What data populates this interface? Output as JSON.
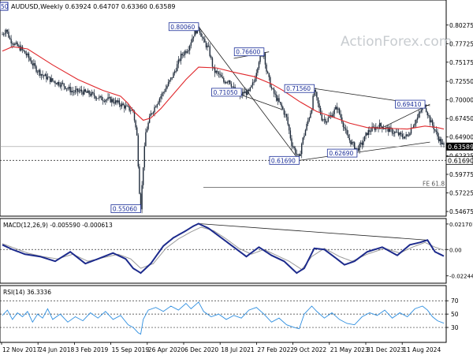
{
  "chart_data": {
    "type": "candlestick",
    "symbol_header": "AUDUSD,Weekly  0.63924 0.64707 0.63360 0.63589",
    "watermark": "ActionForex.com",
    "x_tick_labels": [
      "12 Nov 2017",
      "24 Jun 2018",
      "3 Feb 2019",
      "15 Sep 2019",
      "26 Apr 2020",
      "6 Dec 2020",
      "18 Jul 2021",
      "27 Feb 2022",
      "9 Oct 2022",
      "21 May 2023",
      "31 Dec 2023",
      "11 Aug 2024"
    ],
    "price_axis": {
      "ylim": [
        0.5425,
        0.822
      ],
      "ticks": [
        0.80275,
        0.77725,
        0.75175,
        0.7255,
        0.7,
        0.6745,
        0.649,
        0.62325,
        0.59775,
        0.57225,
        0.54675
      ],
      "tick_labels": [
        "0.80275",
        "0.77725",
        "0.75175",
        "0.72550",
        "0.70000",
        "0.67450",
        "0.64900",
        "0.62325",
        "0.59775",
        "0.57225",
        "0.54675"
      ],
      "current_price_label": "0.63589",
      "current_price": 0.63589,
      "support_label": "0.61690",
      "support": 0.6169
    },
    "price_path": [
      [
        0,
        0.79
      ],
      [
        3,
        0.797
      ],
      [
        6,
        0.783
      ],
      [
        10,
        0.776
      ],
      [
        15,
        0.77
      ],
      [
        20,
        0.76
      ],
      [
        26,
        0.744
      ],
      [
        32,
        0.734
      ],
      [
        40,
        0.726
      ],
      [
        48,
        0.721
      ],
      [
        56,
        0.711
      ],
      [
        62,
        0.712
      ],
      [
        70,
        0.708
      ],
      [
        78,
        0.702
      ],
      [
        86,
        0.7
      ],
      [
        94,
        0.694
      ],
      [
        100,
        0.688
      ],
      [
        104,
        0.685
      ],
      [
        107,
        0.65
      ],
      [
        109,
        0.575
      ],
      [
        110,
        0.553
      ],
      [
        112,
        0.61
      ],
      [
        114,
        0.655
      ],
      [
        118,
        0.68
      ],
      [
        124,
        0.7
      ],
      [
        130,
        0.716
      ],
      [
        136,
        0.735
      ],
      [
        142,
        0.76
      ],
      [
        148,
        0.772
      ],
      [
        152,
        0.79
      ],
      [
        156,
        0.8
      ],
      [
        160,
        0.78
      ],
      [
        164,
        0.77
      ],
      [
        168,
        0.74
      ],
      [
        172,
        0.735
      ],
      [
        176,
        0.725
      ],
      [
        180,
        0.728
      ],
      [
        184,
        0.715
      ],
      [
        188,
        0.705
      ],
      [
        192,
        0.71
      ],
      [
        196,
        0.71
      ],
      [
        200,
        0.725
      ],
      [
        204,
        0.755
      ],
      [
        208,
        0.765
      ],
      [
        210,
        0.74
      ],
      [
        214,
        0.715
      ],
      [
        218,
        0.702
      ],
      [
        222,
        0.69
      ],
      [
        226,
        0.675
      ],
      [
        230,
        0.64
      ],
      [
        234,
        0.625
      ],
      [
        236,
        0.619
      ],
      [
        238,
        0.64
      ],
      [
        242,
        0.665
      ],
      [
        246,
        0.69
      ],
      [
        248,
        0.714
      ],
      [
        250,
        0.7
      ],
      [
        254,
        0.675
      ],
      [
        258,
        0.672
      ],
      [
        262,
        0.68
      ],
      [
        266,
        0.69
      ],
      [
        270,
        0.672
      ],
      [
        274,
        0.65
      ],
      [
        278,
        0.64
      ],
      [
        282,
        0.632
      ],
      [
        286,
        0.64
      ],
      [
        290,
        0.655
      ],
      [
        294,
        0.66
      ],
      [
        300,
        0.665
      ],
      [
        306,
        0.66
      ],
      [
        312,
        0.655
      ],
      [
        318,
        0.65
      ],
      [
        322,
        0.65
      ],
      [
        326,
        0.665
      ],
      [
        330,
        0.675
      ],
      [
        334,
        0.69
      ],
      [
        336,
        0.692
      ],
      [
        340,
        0.672
      ],
      [
        343,
        0.662
      ],
      [
        346,
        0.65
      ],
      [
        349,
        0.641
      ],
      [
        351,
        0.6359
      ]
    ],
    "moving_average": [
      [
        0,
        0.767
      ],
      [
        8,
        0.773
      ],
      [
        20,
        0.77
      ],
      [
        40,
        0.748
      ],
      [
        60,
        0.728
      ],
      [
        80,
        0.713
      ],
      [
        94,
        0.705
      ],
      [
        100,
        0.695
      ],
      [
        104,
        0.685
      ],
      [
        112,
        0.672
      ],
      [
        118,
        0.675
      ],
      [
        126,
        0.688
      ],
      [
        136,
        0.708
      ],
      [
        146,
        0.728
      ],
      [
        156,
        0.745
      ],
      [
        170,
        0.744
      ],
      [
        184,
        0.738
      ],
      [
        200,
        0.732
      ],
      [
        214,
        0.722
      ],
      [
        224,
        0.712
      ],
      [
        236,
        0.698
      ],
      [
        250,
        0.684
      ],
      [
        262,
        0.677
      ],
      [
        276,
        0.668
      ],
      [
        290,
        0.662
      ],
      [
        306,
        0.661
      ],
      [
        322,
        0.66
      ],
      [
        336,
        0.664
      ],
      [
        346,
        0.662
      ],
      [
        351,
        0.66
      ]
    ],
    "annotations": [
      {
        "label": "0.80060",
        "x": 156,
        "y": 0.8006
      },
      {
        "label": "0.76600",
        "x": 208,
        "y": 0.766
      },
      {
        "label": "0.71050",
        "x": 190,
        "y": 0.7105
      },
      {
        "label": "0.71560",
        "x": 248,
        "y": 0.7156
      },
      {
        "label": "0.69410",
        "x": 336,
        "y": 0.6941
      },
      {
        "label": "0.62690",
        "x": 282,
        "y": 0.6269
      },
      {
        "label": "0.61690",
        "x": 236,
        "y": 0.6169
      },
      {
        "label": "0.55060",
        "x": 110,
        "y": 0.5506
      }
    ],
    "partial_top_label": "50",
    "fib_level": {
      "label": "FE 61.8",
      "value": 0.58
    },
    "macd": {
      "title": "MACD(12,26,9) -0.005590 -0.000613",
      "ylim": [
        -0.026,
        0.023
      ],
      "ticks": [
        0.021701,
        0.0,
        -0.022445
      ],
      "tick_labels": [
        "0.021701",
        "0.00",
        "-0.022445"
      ],
      "macd_path": [
        [
          0,
          0.004
        ],
        [
          8,
          0.0
        ],
        [
          18,
          -0.004
        ],
        [
          30,
          -0.006
        ],
        [
          42,
          -0.01
        ],
        [
          54,
          -0.002
        ],
        [
          66,
          -0.012
        ],
        [
          76,
          -0.008
        ],
        [
          88,
          -0.003
        ],
        [
          98,
          -0.008
        ],
        [
          104,
          -0.016
        ],
        [
          110,
          -0.02
        ],
        [
          118,
          -0.012
        ],
        [
          128,
          0.003
        ],
        [
          136,
          0.01
        ],
        [
          146,
          0.016
        ],
        [
          152,
          0.02
        ],
        [
          156,
          0.022
        ],
        [
          164,
          0.018
        ],
        [
          174,
          0.01
        ],
        [
          184,
          0.002
        ],
        [
          194,
          -0.006
        ],
        [
          204,
          0.002
        ],
        [
          214,
          -0.005
        ],
        [
          224,
          -0.01
        ],
        [
          234,
          -0.02
        ],
        [
          240,
          -0.016
        ],
        [
          248,
          0.001
        ],
        [
          256,
          0.0
        ],
        [
          266,
          -0.008
        ],
        [
          272,
          -0.013
        ],
        [
          280,
          -0.01
        ],
        [
          290,
          -0.002
        ],
        [
          302,
          0.002
        ],
        [
          314,
          -0.005
        ],
        [
          324,
          0.004
        ],
        [
          332,
          0.006
        ],
        [
          338,
          0.008
        ],
        [
          344,
          -0.002
        ],
        [
          351,
          -0.0056
        ]
      ],
      "signal_path": [
        [
          0,
          0.005
        ],
        [
          10,
          0.001
        ],
        [
          20,
          -0.003
        ],
        [
          32,
          -0.006
        ],
        [
          44,
          -0.008
        ],
        [
          56,
          -0.004
        ],
        [
          68,
          -0.01
        ],
        [
          80,
          -0.007
        ],
        [
          92,
          -0.004
        ],
        [
          102,
          -0.008
        ],
        [
          110,
          -0.016
        ],
        [
          120,
          -0.012
        ],
        [
          130,
          0.001
        ],
        [
          140,
          0.009
        ],
        [
          150,
          0.015
        ],
        [
          158,
          0.019
        ],
        [
          168,
          0.016
        ],
        [
          178,
          0.009
        ],
        [
          188,
          0.001
        ],
        [
          198,
          -0.004
        ],
        [
          208,
          0.0
        ],
        [
          218,
          -0.005
        ],
        [
          228,
          -0.01
        ],
        [
          238,
          -0.017
        ],
        [
          246,
          -0.006
        ],
        [
          256,
          0.001
        ],
        [
          268,
          -0.006
        ],
        [
          278,
          -0.01
        ],
        [
          290,
          -0.004
        ],
        [
          304,
          0.001
        ],
        [
          316,
          -0.003
        ],
        [
          326,
          0.002
        ],
        [
          336,
          0.006
        ],
        [
          344,
          0.002
        ],
        [
          351,
          -0.0006
        ]
      ]
    },
    "rsi": {
      "title": "RSI(14) 36.3336",
      "ylim": [
        10,
        88
      ],
      "ticks": [
        70,
        50,
        30
      ],
      "tick_labels": [
        "70",
        "50",
        "30"
      ],
      "rsi_path": [
        [
          0,
          48
        ],
        [
          4,
          56
        ],
        [
          8,
          42
        ],
        [
          12,
          52
        ],
        [
          16,
          46
        ],
        [
          20,
          54
        ],
        [
          24,
          38
        ],
        [
          28,
          50
        ],
        [
          32,
          44
        ],
        [
          36,
          58
        ],
        [
          40,
          42
        ],
        [
          46,
          50
        ],
        [
          52,
          38
        ],
        [
          58,
          46
        ],
        [
          64,
          40
        ],
        [
          70,
          52
        ],
        [
          76,
          44
        ],
        [
          82,
          54
        ],
        [
          88,
          42
        ],
        [
          94,
          48
        ],
        [
          100,
          34
        ],
        [
          104,
          30
        ],
        [
          108,
          22
        ],
        [
          110,
          20
        ],
        [
          112,
          42
        ],
        [
          116,
          56
        ],
        [
          122,
          60
        ],
        [
          128,
          54
        ],
        [
          134,
          62
        ],
        [
          140,
          56
        ],
        [
          146,
          66
        ],
        [
          150,
          58
        ],
        [
          156,
          68
        ],
        [
          160,
          54
        ],
        [
          166,
          46
        ],
        [
          172,
          50
        ],
        [
          178,
          42
        ],
        [
          184,
          48
        ],
        [
          190,
          44
        ],
        [
          196,
          56
        ],
        [
          202,
          60
        ],
        [
          208,
          50
        ],
        [
          214,
          38
        ],
        [
          220,
          44
        ],
        [
          226,
          34
        ],
        [
          232,
          30
        ],
        [
          236,
          28
        ],
        [
          240,
          50
        ],
        [
          246,
          62
        ],
        [
          250,
          54
        ],
        [
          256,
          44
        ],
        [
          262,
          52
        ],
        [
          268,
          42
        ],
        [
          274,
          36
        ],
        [
          280,
          34
        ],
        [
          286,
          46
        ],
        [
          292,
          52
        ],
        [
          298,
          48
        ],
        [
          304,
          56
        ],
        [
          310,
          44
        ],
        [
          316,
          52
        ],
        [
          322,
          46
        ],
        [
          328,
          58
        ],
        [
          334,
          62
        ],
        [
          338,
          56
        ],
        [
          342,
          46
        ],
        [
          346,
          40
        ],
        [
          351,
          36.33
        ]
      ]
    }
  }
}
